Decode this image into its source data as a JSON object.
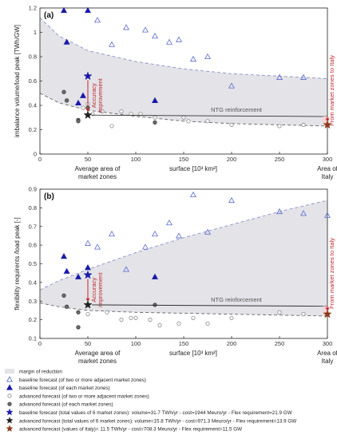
{
  "chart_data": [
    {
      "type": "scatter",
      "panel": "(a)",
      "ylabel": "imbalance volume/load peak [TWh/GW]",
      "xlabel": "surface [10³ km²]",
      "xlim": [
        0,
        300
      ],
      "ylim": [
        0,
        1.2
      ],
      "xticks": [
        0,
        50,
        100,
        150,
        200,
        250,
        300
      ],
      "yticks": [
        0,
        0.2,
        0.4,
        0.6,
        0.8,
        1,
        1.2
      ],
      "x_annot_left": [
        "Average area of",
        "market zones"
      ],
      "x_annot_right": [
        "Area of",
        "Italy"
      ],
      "accuracy_label": [
        "Accuracy",
        "improvement"
      ],
      "ntg_label": "NTG reinforcement",
      "italy_label": "From market zones  to Italy",
      "band_upper": {
        "x": [
          0,
          20,
          50,
          100,
          150,
          200,
          250,
          300
        ],
        "y": [
          1.12,
          0.97,
          0.85,
          0.76,
          0.7,
          0.66,
          0.64,
          0.62
        ]
      },
      "band_lower": {
        "x": [
          0,
          20,
          50,
          100,
          150,
          200,
          250,
          300
        ],
        "y": [
          0.5,
          0.42,
          0.36,
          0.31,
          0.27,
          0.25,
          0.24,
          0.23
        ]
      },
      "series": [
        {
          "marker": "tri-open",
          "x": [
            60,
            75,
            90,
            110,
            120,
            135,
            145,
            160,
            175,
            200,
            250,
            275
          ],
          "y": [
            1.1,
            0.9,
            1.04,
            1.02,
            0.97,
            0.92,
            0.94,
            0.78,
            0.8,
            0.56,
            0.63,
            0.63
          ]
        },
        {
          "marker": "tri-filled",
          "x": [
            25,
            28,
            50,
            40,
            45,
            120
          ],
          "y": [
            1.18,
            0.92,
            1.18,
            0.42,
            0.48,
            0.44
          ]
        },
        {
          "marker": "circ-open",
          "x": [
            45,
            50,
            55,
            65,
            75,
            85,
            95,
            105,
            120,
            150,
            155,
            175,
            200,
            250,
            275
          ],
          "y": [
            0.38,
            0.41,
            0.33,
            0.35,
            0.23,
            0.35,
            0.33,
            0.33,
            0.3,
            0.3,
            0.27,
            0.27,
            0.24,
            0.23,
            0.24
          ]
        },
        {
          "marker": "circ-filled",
          "x": [
            25,
            28,
            40,
            40,
            50,
            120
          ],
          "y": [
            0.51,
            0.44,
            0.28,
            0.27,
            0.38,
            0.26
          ]
        }
      ],
      "star_baseline": {
        "x": 50,
        "y": 0.64
      },
      "star_advanced": {
        "x": 50,
        "y": 0.32
      },
      "star_italy": {
        "x": 300,
        "y": 0.24
      }
    },
    {
      "type": "scatter",
      "panel": "(b)",
      "ylabel": "flexibility requirents /load peak [-]",
      "xlabel": "surface [10³ km²]",
      "xlim": [
        0,
        300
      ],
      "ylim": [
        0.1,
        0.9
      ],
      "xticks": [
        0,
        50,
        100,
        150,
        200,
        250,
        300
      ],
      "yticks": [
        0.1,
        0.2,
        0.3,
        0.4,
        0.5,
        0.6,
        0.7,
        0.8,
        0.9
      ],
      "x_annot_left": [
        "Average area of",
        "market zones"
      ],
      "x_annot_right": [
        "Area of",
        "Italy"
      ],
      "accuracy_label": [
        "Accuracy",
        "improvement"
      ],
      "ntg_label": "NTG reinforcement",
      "italy_label": "From market zones  to Italy",
      "band_upper": {
        "x": [
          0,
          20,
          50,
          100,
          150,
          200,
          250,
          300
        ],
        "y": [
          0.36,
          0.41,
          0.47,
          0.56,
          0.64,
          0.71,
          0.78,
          0.84
        ]
      },
      "band_lower": {
        "x": [
          0,
          20,
          50,
          100,
          150,
          200,
          250,
          300
        ],
        "y": [
          0.29,
          0.27,
          0.25,
          0.24,
          0.235,
          0.23,
          0.225,
          0.22
        ]
      },
      "series": [
        {
          "marker": "tri-open",
          "x": [
            50,
            60,
            75,
            90,
            110,
            120,
            135,
            145,
            160,
            175,
            200,
            250,
            275,
            300
          ],
          "y": [
            0.61,
            0.59,
            0.66,
            0.47,
            0.59,
            0.66,
            0.72,
            0.65,
            0.87,
            0.67,
            0.84,
            0.78,
            0.77,
            0.76
          ]
        },
        {
          "marker": "tri-filled",
          "x": [
            25,
            28,
            40,
            50,
            120
          ],
          "y": [
            0.54,
            0.46,
            0.43,
            0.48,
            0.43
          ]
        },
        {
          "marker": "circ-open",
          "x": [
            50,
            70,
            85,
            95,
            100,
            115,
            125,
            145,
            160,
            175,
            200,
            250,
            275
          ],
          "y": [
            0.23,
            0.24,
            0.2,
            0.21,
            0.21,
            0.2,
            0.17,
            0.18,
            0.21,
            0.18,
            0.21,
            0.24,
            0.23
          ]
        },
        {
          "marker": "circ-filled",
          "x": [
            25,
            28,
            40,
            40,
            120
          ],
          "y": [
            0.33,
            0.27,
            0.24,
            0.16,
            0.28
          ]
        }
      ],
      "star_baseline": {
        "x": 50,
        "y": 0.44
      },
      "star_advanced": {
        "x": 50,
        "y": 0.28
      },
      "star_italy": {
        "x": 300,
        "y": 0.23
      }
    }
  ],
  "legend": [
    {
      "marker": "band",
      "label": "margin of reduction"
    },
    {
      "marker": "tri-open",
      "label": "baseline forecast (of two or more adjacent market zones)"
    },
    {
      "marker": "tri-filled",
      "label": "baseline forecast (of each market zones)"
    },
    {
      "marker": "circ-open",
      "label": "advanced forecast (of two or more adjacent market zones)"
    },
    {
      "marker": "circ-filled",
      "label": "advanced forecast (of each market zones)"
    },
    {
      "marker": "star-blue",
      "label": "baseline forecast (total values of 6 market zones): volume=31.7 TWh/yr - cost=1944 Meuro/yr - Flex requirement=21.9 GW"
    },
    {
      "marker": "star-black",
      "label": "advanced forecast (total values of 6 market zones): volume=15.8 TWh/yr - cost=971.3 Meuro/yr - Flex requirement=13.9 GW"
    },
    {
      "marker": "star-red",
      "label": "advanced forecast (values of Italy)= 11.5 TWh/yr - cost=708.3 Meuro/yr - Flex requirement=11.5 GW"
    }
  ],
  "colors": {
    "band": "#e3e3e8",
    "band_edge": "#8a93c8",
    "blue": "#1a1aa8",
    "open_blue": "#5a6ad0",
    "gray": "#888888",
    "dark": "#333333",
    "red": "#c0282b",
    "italy_star": "#8b3a1a"
  }
}
